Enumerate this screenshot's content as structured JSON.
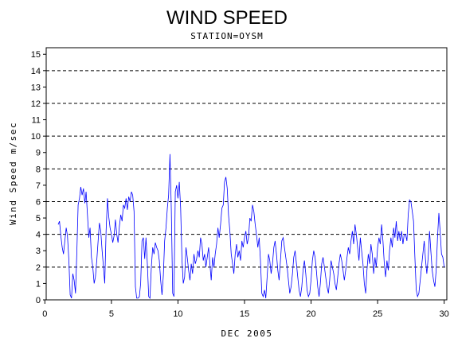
{
  "chart_data": {
    "type": "line",
    "title": "WIND SPEED",
    "subtitle": "STATION=OYSM",
    "xlabel": "DEC 2005",
    "ylabel": "Wind Speed m/sec",
    "xlim": [
      0.1,
      30.2
    ],
    "ylim": [
      0,
      15.4
    ],
    "x_ticks": [
      0,
      5,
      10,
      15,
      20,
      25,
      30
    ],
    "y_ticks": [
      0,
      1,
      2,
      3,
      4,
      5,
      6,
      7,
      8,
      9,
      10,
      11,
      12,
      13,
      14,
      15
    ],
    "gridlines_y": [
      0,
      2,
      4,
      6,
      8,
      10,
      12,
      14
    ],
    "grid": "dashed horizontal",
    "line_color": "#0000ff",
    "series": [
      {
        "values": [
          [
            1.0,
            4.6
          ],
          [
            1.1,
            4.8
          ],
          [
            1.2,
            3.9
          ],
          [
            1.3,
            3.2
          ],
          [
            1.4,
            2.8
          ],
          [
            1.5,
            3.6
          ],
          [
            1.6,
            4.4
          ],
          [
            1.7,
            3.9
          ],
          [
            1.8,
            2.5
          ],
          [
            1.9,
            0.3
          ],
          [
            2.0,
            0.1
          ],
          [
            2.1,
            1.6
          ],
          [
            2.2,
            1.2
          ],
          [
            2.3,
            0.4
          ],
          [
            2.4,
            2.8
          ],
          [
            2.5,
            5.8
          ],
          [
            2.6,
            6.2
          ],
          [
            2.7,
            6.9
          ],
          [
            2.8,
            6.4
          ],
          [
            2.9,
            6.8
          ],
          [
            3.0,
            5.9
          ],
          [
            3.1,
            6.6
          ],
          [
            3.2,
            5.2
          ],
          [
            3.3,
            3.8
          ],
          [
            3.4,
            4.4
          ],
          [
            3.5,
            2.6
          ],
          [
            3.6,
            2.0
          ],
          [
            3.7,
            1.0
          ],
          [
            3.8,
            1.4
          ],
          [
            3.9,
            2.4
          ],
          [
            4.0,
            3.6
          ],
          [
            4.1,
            4.7
          ],
          [
            4.2,
            4.2
          ],
          [
            4.3,
            3.0
          ],
          [
            4.4,
            2.0
          ],
          [
            4.5,
            1.0
          ],
          [
            4.6,
            4.2
          ],
          [
            4.7,
            6.2
          ],
          [
            4.8,
            5.1
          ],
          [
            4.9,
            4.4
          ],
          [
            5.0,
            4.0
          ],
          [
            5.1,
            3.5
          ],
          [
            5.2,
            3.9
          ],
          [
            5.3,
            4.9
          ],
          [
            5.4,
            4.0
          ],
          [
            5.5,
            3.5
          ],
          [
            5.6,
            4.5
          ],
          [
            5.7,
            5.2
          ],
          [
            5.8,
            4.8
          ],
          [
            5.9,
            5.8
          ],
          [
            6.0,
            5.6
          ],
          [
            6.1,
            6.2
          ],
          [
            6.2,
            5.5
          ],
          [
            6.3,
            6.3
          ],
          [
            6.4,
            6.0
          ],
          [
            6.5,
            6.6
          ],
          [
            6.6,
            6.4
          ],
          [
            6.7,
            5.4
          ],
          [
            6.8,
            0.8
          ],
          [
            6.9,
            0.1
          ],
          [
            7.0,
            0.1
          ],
          [
            7.1,
            0.2
          ],
          [
            7.2,
            1.0
          ],
          [
            7.3,
            3.6
          ],
          [
            7.4,
            3.8
          ],
          [
            7.5,
            2.5
          ],
          [
            7.6,
            3.8
          ],
          [
            7.7,
            2.2
          ],
          [
            7.8,
            0.2
          ],
          [
            7.9,
            0.1
          ],
          [
            8.0,
            2.0
          ],
          [
            8.1,
            3.2
          ],
          [
            8.2,
            2.8
          ],
          [
            8.3,
            3.5
          ],
          [
            8.4,
            3.2
          ],
          [
            8.5,
            3.0
          ],
          [
            8.6,
            2.4
          ],
          [
            8.7,
            1.2
          ],
          [
            8.8,
            0.3
          ],
          [
            8.9,
            1.5
          ],
          [
            9.0,
            3.6
          ],
          [
            9.1,
            4.4
          ],
          [
            9.2,
            5.6
          ],
          [
            9.3,
            6.4
          ],
          [
            9.4,
            8.9
          ],
          [
            9.5,
            5.5
          ],
          [
            9.6,
            0.4
          ],
          [
            9.7,
            0.2
          ],
          [
            9.8,
            6.6
          ],
          [
            9.9,
            7.0
          ],
          [
            10.0,
            6.2
          ],
          [
            10.1,
            7.2
          ],
          [
            10.2,
            5.6
          ],
          [
            10.3,
            2.4
          ],
          [
            10.4,
            1.0
          ],
          [
            10.5,
            1.4
          ],
          [
            10.6,
            3.2
          ],
          [
            10.7,
            2.6
          ],
          [
            10.8,
            1.8
          ],
          [
            10.9,
            1.2
          ],
          [
            11.0,
            2.2
          ],
          [
            11.1,
            1.6
          ],
          [
            11.2,
            2.8
          ],
          [
            11.3,
            2.2
          ],
          [
            11.4,
            2.5
          ],
          [
            11.5,
            3.0
          ],
          [
            11.6,
            2.6
          ],
          [
            11.7,
            3.8
          ],
          [
            11.8,
            3.4
          ],
          [
            11.9,
            2.4
          ],
          [
            12.0,
            2.8
          ],
          [
            12.1,
            2.0
          ],
          [
            12.2,
            2.6
          ],
          [
            12.3,
            3.2
          ],
          [
            12.4,
            2.2
          ],
          [
            12.5,
            1.2
          ],
          [
            12.6,
            2.6
          ],
          [
            12.7,
            2.0
          ],
          [
            12.8,
            2.8
          ],
          [
            12.9,
            3.4
          ],
          [
            13.0,
            4.4
          ],
          [
            13.1,
            3.8
          ],
          [
            13.2,
            4.6
          ],
          [
            13.3,
            5.6
          ],
          [
            13.4,
            5.8
          ],
          [
            13.5,
            7.2
          ],
          [
            13.6,
            7.5
          ],
          [
            13.7,
            6.8
          ],
          [
            13.8,
            5.2
          ],
          [
            13.9,
            4.2
          ],
          [
            14.0,
            2.8
          ],
          [
            14.1,
            2.2
          ],
          [
            14.2,
            1.6
          ],
          [
            14.3,
            2.8
          ],
          [
            14.4,
            3.4
          ],
          [
            14.5,
            2.6
          ],
          [
            14.6,
            3.0
          ],
          [
            14.7,
            2.4
          ],
          [
            14.8,
            3.6
          ],
          [
            14.9,
            3.2
          ],
          [
            15.0,
            3.8
          ],
          [
            15.1,
            4.2
          ],
          [
            15.2,
            3.4
          ],
          [
            15.3,
            3.8
          ],
          [
            15.4,
            5.0
          ],
          [
            15.5,
            4.8
          ],
          [
            15.6,
            5.8
          ],
          [
            15.7,
            5.4
          ],
          [
            15.8,
            4.6
          ],
          [
            15.9,
            4.0
          ],
          [
            16.0,
            3.2
          ],
          [
            16.1,
            3.8
          ],
          [
            16.2,
            2.4
          ],
          [
            16.3,
            0.4
          ],
          [
            16.4,
            0.2
          ],
          [
            16.5,
            0.6
          ],
          [
            16.6,
            0.1
          ],
          [
            16.7,
            1.4
          ],
          [
            16.8,
            2.8
          ],
          [
            16.9,
            2.4
          ],
          [
            17.0,
            1.6
          ],
          [
            17.1,
            2.2
          ],
          [
            17.2,
            3.2
          ],
          [
            17.3,
            3.6
          ],
          [
            17.4,
            2.8
          ],
          [
            17.5,
            1.8
          ],
          [
            17.6,
            1.2
          ],
          [
            17.7,
            2.4
          ],
          [
            17.8,
            3.6
          ],
          [
            17.9,
            3.8
          ],
          [
            18.0,
            3.2
          ],
          [
            18.1,
            2.6
          ],
          [
            18.2,
            2.0
          ],
          [
            18.3,
            1.2
          ],
          [
            18.4,
            0.4
          ],
          [
            18.5,
            0.8
          ],
          [
            18.6,
            1.6
          ],
          [
            18.7,
            2.6
          ],
          [
            18.8,
            3.0
          ],
          [
            18.9,
            2.2
          ],
          [
            19.0,
            1.4
          ],
          [
            19.1,
            0.6
          ],
          [
            19.2,
            0.2
          ],
          [
            19.3,
            0.8
          ],
          [
            19.4,
            1.8
          ],
          [
            19.5,
            2.4
          ],
          [
            19.6,
            1.6
          ],
          [
            19.7,
            0.6
          ],
          [
            19.8,
            0.2
          ],
          [
            19.9,
            0.4
          ],
          [
            20.0,
            1.2
          ],
          [
            20.1,
            2.4
          ],
          [
            20.2,
            3.0
          ],
          [
            20.3,
            2.6
          ],
          [
            20.4,
            1.8
          ],
          [
            20.5,
            0.8
          ],
          [
            20.6,
            0.2
          ],
          [
            20.7,
            1.0
          ],
          [
            20.8,
            2.2
          ],
          [
            20.9,
            2.6
          ],
          [
            21.0,
            2.0
          ],
          [
            21.1,
            1.4
          ],
          [
            21.2,
            0.8
          ],
          [
            21.3,
            0.4
          ],
          [
            21.4,
            1.2
          ],
          [
            21.5,
            2.4
          ],
          [
            21.6,
            2.0
          ],
          [
            21.7,
            1.6
          ],
          [
            21.8,
            1.0
          ],
          [
            21.9,
            0.6
          ],
          [
            22.0,
            1.4
          ],
          [
            22.1,
            2.2
          ],
          [
            22.2,
            2.8
          ],
          [
            22.3,
            2.4
          ],
          [
            22.4,
            1.8
          ],
          [
            22.5,
            1.2
          ],
          [
            22.6,
            1.8
          ],
          [
            22.7,
            2.6
          ],
          [
            22.8,
            3.2
          ],
          [
            22.9,
            2.8
          ],
          [
            23.0,
            3.6
          ],
          [
            23.1,
            4.2
          ],
          [
            23.2,
            3.4
          ],
          [
            23.3,
            4.6
          ],
          [
            23.4,
            4.0
          ],
          [
            23.5,
            3.2
          ],
          [
            23.6,
            2.4
          ],
          [
            23.7,
            3.8
          ],
          [
            23.8,
            3.0
          ],
          [
            23.9,
            2.2
          ],
          [
            24.0,
            1.0
          ],
          [
            24.1,
            0.4
          ],
          [
            24.2,
            1.8
          ],
          [
            24.3,
            2.8
          ],
          [
            24.4,
            2.2
          ],
          [
            24.5,
            3.4
          ],
          [
            24.6,
            2.8
          ],
          [
            24.7,
            1.6
          ],
          [
            24.8,
            2.6
          ],
          [
            24.9,
            2.0
          ],
          [
            25.0,
            3.2
          ],
          [
            25.1,
            3.8
          ],
          [
            25.2,
            3.4
          ],
          [
            25.3,
            4.6
          ],
          [
            25.4,
            3.6
          ],
          [
            25.5,
            2.2
          ],
          [
            25.6,
            1.4
          ],
          [
            25.7,
            2.4
          ],
          [
            25.8,
            1.8
          ],
          [
            25.9,
            3.0
          ],
          [
            26.0,
            3.8
          ],
          [
            26.1,
            3.2
          ],
          [
            26.2,
            4.4
          ],
          [
            26.3,
            3.8
          ],
          [
            26.4,
            4.8
          ],
          [
            26.5,
            3.6
          ],
          [
            26.6,
            4.2
          ],
          [
            26.7,
            3.6
          ],
          [
            26.8,
            4.2
          ],
          [
            26.9,
            3.4
          ],
          [
            27.0,
            4.0
          ],
          [
            27.1,
            4.0
          ],
          [
            27.2,
            3.6
          ],
          [
            27.3,
            5.2
          ],
          [
            27.4,
            6.1
          ],
          [
            27.5,
            6.0
          ],
          [
            27.6,
            5.4
          ],
          [
            27.7,
            4.8
          ],
          [
            27.8,
            2.6
          ],
          [
            27.9,
            0.6
          ],
          [
            28.0,
            0.2
          ],
          [
            28.1,
            0.4
          ],
          [
            28.2,
            1.2
          ],
          [
            28.3,
            2.0
          ],
          [
            28.4,
            2.8
          ],
          [
            28.5,
            3.6
          ],
          [
            28.6,
            2.4
          ],
          [
            28.7,
            1.6
          ],
          [
            28.8,
            2.6
          ],
          [
            28.9,
            4.2
          ],
          [
            29.0,
            3.0
          ],
          [
            29.1,
            1.8
          ],
          [
            29.2,
            1.2
          ],
          [
            29.3,
            0.8
          ],
          [
            29.4,
            1.8
          ],
          [
            29.5,
            3.8
          ],
          [
            29.6,
            5.3
          ],
          [
            29.7,
            4.2
          ],
          [
            29.8,
            2.8
          ],
          [
            29.9,
            2.6
          ],
          [
            30.0,
            2.0
          ]
        ]
      }
    ]
  }
}
